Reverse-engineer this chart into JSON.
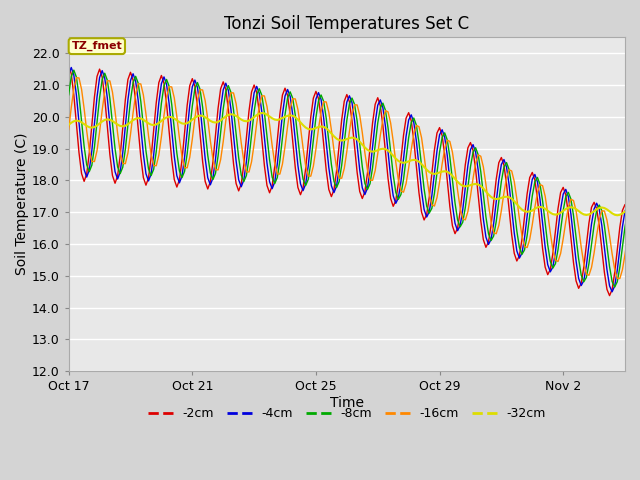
{
  "title": "Tonzi Soil Temperatures Set C",
  "xlabel": "Time",
  "ylabel": "Soil Temperature (C)",
  "ylim": [
    12.0,
    22.5
  ],
  "yticks": [
    12.0,
    13.0,
    14.0,
    15.0,
    16.0,
    17.0,
    18.0,
    19.0,
    20.0,
    21.0,
    22.0
  ],
  "fig_bg": "#d4d4d4",
  "plot_bg": "#e8e8e8",
  "series_colors": {
    "-2cm": "#dd0000",
    "-4cm": "#0000dd",
    "-8cm": "#00aa00",
    "-16cm": "#ff8800",
    "-32cm": "#dddd00"
  },
  "annotation_label": "TZ_fmet",
  "annotation_bg": "#ffffcc",
  "annotation_border": "#aaaa00",
  "x_tick_labels": [
    "Oct 17",
    "Oct 21",
    "Oct 25",
    "Oct 29",
    "Nov 2"
  ],
  "x_tick_days": [
    0,
    4,
    8,
    12,
    16
  ],
  "xlim": [
    0,
    18.0
  ]
}
